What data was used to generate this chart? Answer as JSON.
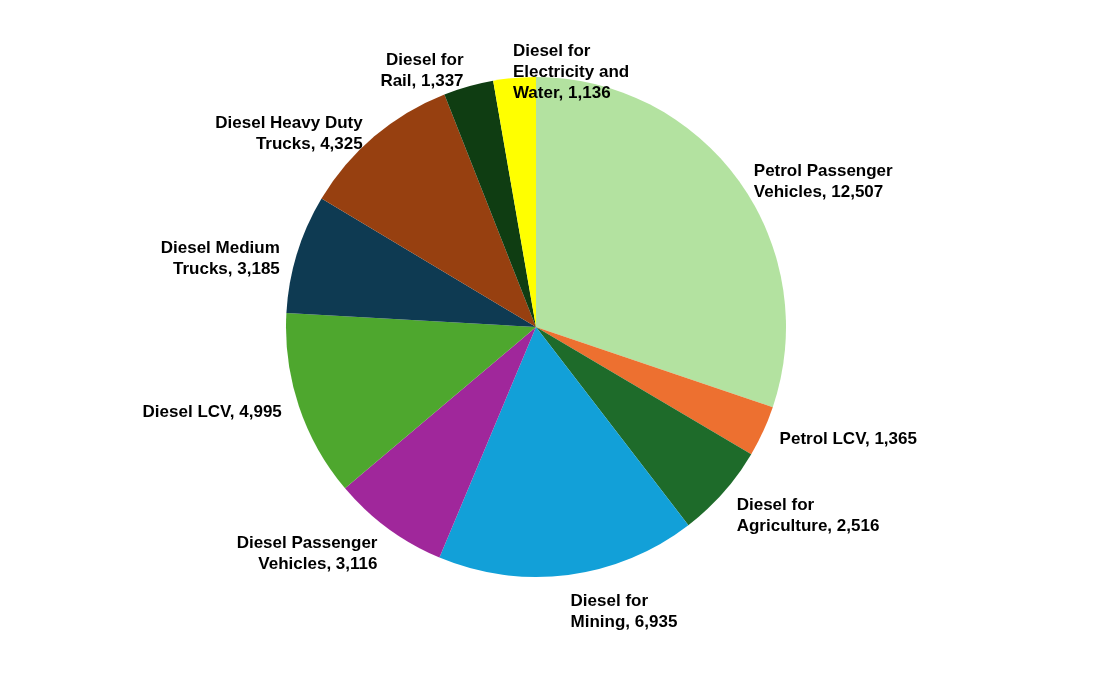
{
  "chart_data": {
    "type": "pie",
    "categories": [
      "Petrol Passenger Vehicles",
      "Petrol LCV",
      "Diesel for Agriculture",
      "Diesel for Mining",
      "Diesel Passenger Vehicles",
      "Diesel LCV",
      "Diesel Medium Trucks",
      "Diesel Heavy Duty Trucks",
      "Diesel for Rail",
      "Diesel for Electricity and Water"
    ],
    "values": [
      12507,
      1365,
      2516,
      6935,
      3116,
      4995,
      3185,
      4325,
      1337,
      1136
    ],
    "value_labels": [
      "12,507",
      "1,365",
      "2,516",
      "6,935",
      "3,116",
      "4,995",
      "3,185",
      "4,325",
      "1,337",
      "1,136"
    ],
    "colors": [
      "#b3e2a0",
      "#ed7030",
      "#1e6b2a",
      "#12a0d8",
      "#a0279b",
      "#4ea72e",
      "#0e3a52",
      "#974010",
      "#0f3d12",
      "#ffff00"
    ],
    "data_labels": true,
    "legend": false
  }
}
